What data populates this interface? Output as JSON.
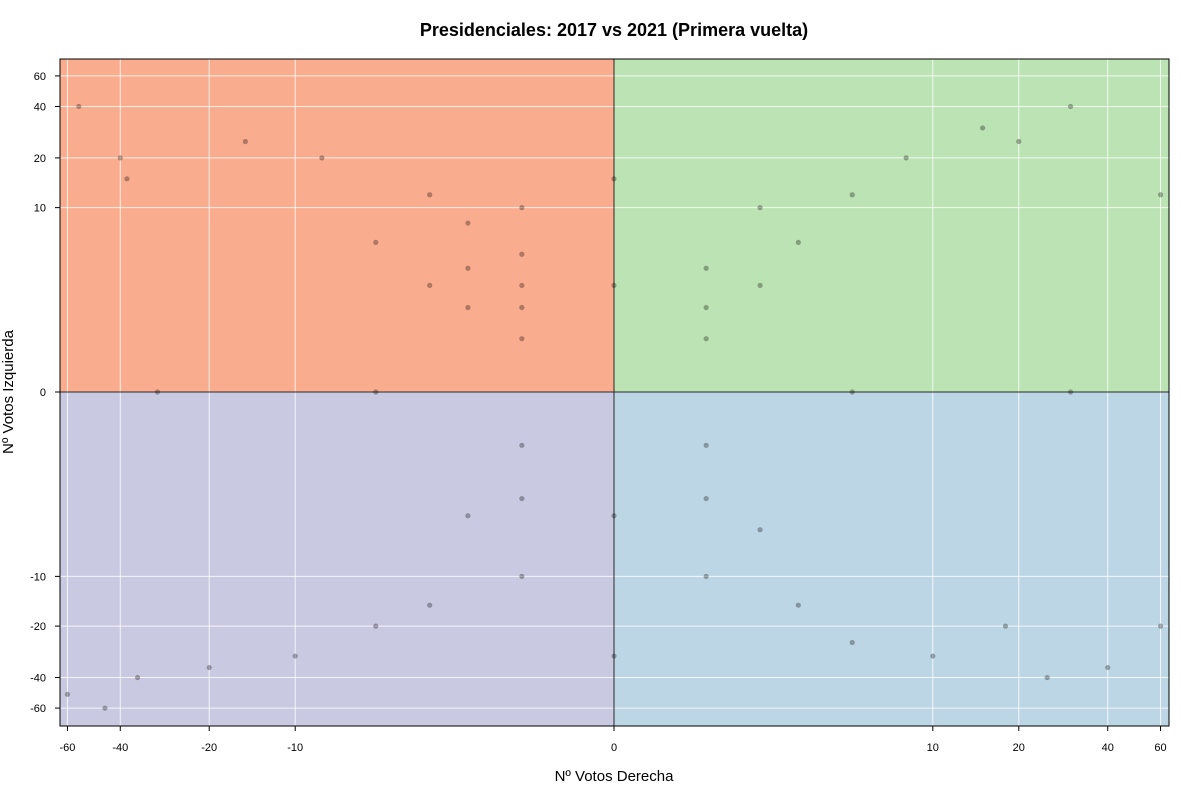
{
  "chart_data": {
    "type": "scatter",
    "title": "Presidenciales: 2017 vs 2021 (Primera vuelta)",
    "xlabel": "Nº Votos Derecha",
    "ylabel": "Nº Votos Izquierda",
    "x_scale": "signed-log",
    "y_scale": "signed-log",
    "xlim": [
      -64,
      64
    ],
    "ylim": [
      -75,
      75
    ],
    "x_ticks": [
      -60,
      -40,
      -20,
      -10,
      0,
      10,
      20,
      40,
      60
    ],
    "x_tick_labels": [
      "-60",
      "-40",
      "-20",
      "-10",
      "0",
      "10",
      "20",
      "40",
      "60"
    ],
    "y_ticks": [
      -60,
      -40,
      -20,
      -10,
      0,
      10,
      20,
      40,
      60
    ],
    "y_tick_labels": [
      "-60",
      "-40",
      "-20",
      "-10",
      "0",
      "10",
      "20",
      "40",
      "60"
    ],
    "grid": true,
    "quadrants": [
      {
        "quadrant": "x<0,y>0",
        "color": "#F9AC8E"
      },
      {
        "quadrant": "x>0,y>0",
        "color": "#BBE3B3"
      },
      {
        "quadrant": "x<0,y<0",
        "color": "#C9C9E1"
      },
      {
        "quadrant": "x>0,y<0",
        "color": "#BDD6E5"
      }
    ],
    "point_color": "#000000",
    "point_alpha": 0.3,
    "series": [
      {
        "points_sample": [
          [
            -1,
            1
          ],
          [
            -1,
            2
          ],
          [
            -1,
            3
          ],
          [
            -1,
            5
          ],
          [
            -1,
            10
          ],
          [
            -2,
            2
          ],
          [
            -2,
            4
          ],
          [
            -2,
            8
          ],
          [
            -3,
            3
          ],
          [
            -3,
            12
          ],
          [
            -5,
            6
          ],
          [
            -8,
            20
          ],
          [
            -15,
            25
          ],
          [
            -40,
            20
          ],
          [
            -38,
            15
          ],
          [
            -55,
            40
          ],
          [
            1,
            1
          ],
          [
            1,
            2
          ],
          [
            1,
            4
          ],
          [
            2,
            3
          ],
          [
            2,
            10
          ],
          [
            3,
            6
          ],
          [
            5,
            12
          ],
          [
            8,
            20
          ],
          [
            15,
            30
          ],
          [
            20,
            25
          ],
          [
            30,
            40
          ],
          [
            60,
            12
          ],
          [
            -1,
            -1
          ],
          [
            -1,
            -3
          ],
          [
            -1,
            -10
          ],
          [
            -2,
            -4
          ],
          [
            -3,
            -15
          ],
          [
            -5,
            -20
          ],
          [
            -10,
            -30
          ],
          [
            -20,
            -35
          ],
          [
            -35,
            -40
          ],
          [
            -45,
            -60
          ],
          [
            -60,
            -50
          ],
          [
            1,
            -1
          ],
          [
            1,
            -3
          ],
          [
            1,
            -10
          ],
          [
            2,
            -5
          ],
          [
            3,
            -15
          ],
          [
            5,
            -25
          ],
          [
            10,
            -30
          ],
          [
            18,
            -20
          ],
          [
            25,
            -40
          ],
          [
            40,
            -35
          ],
          [
            60,
            -20
          ],
          [
            0,
            3
          ],
          [
            0,
            15
          ],
          [
            0,
            -4
          ],
          [
            0,
            -30
          ],
          [
            -30,
            0
          ],
          [
            -5,
            0
          ],
          [
            5,
            0
          ],
          [
            30,
            0
          ]
        ]
      }
    ]
  }
}
